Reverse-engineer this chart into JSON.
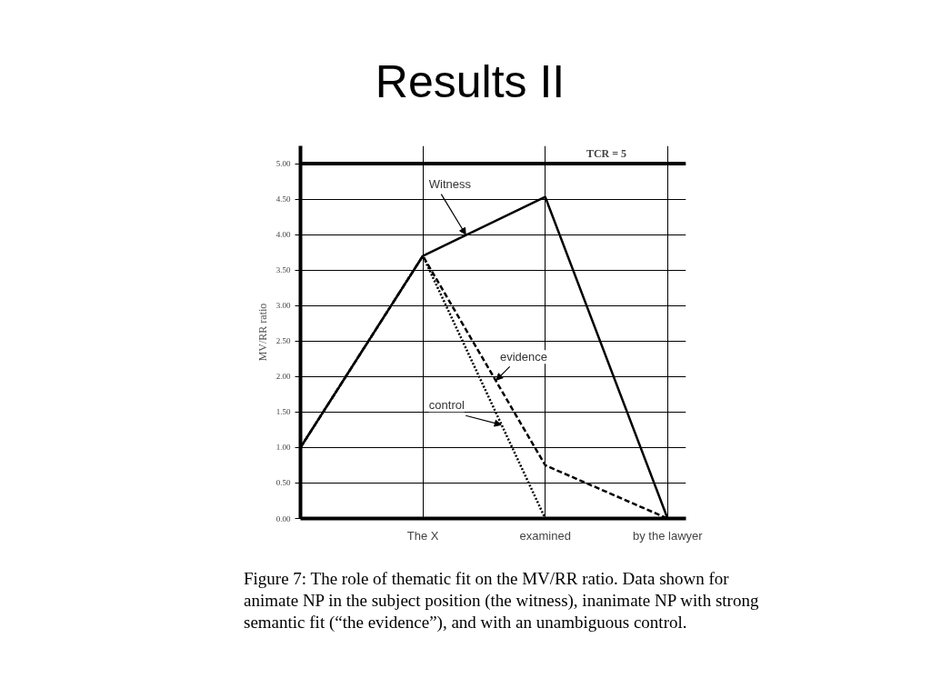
{
  "chart_data": {
    "type": "line",
    "title": "Results II",
    "ylabel": "MV/RR ratio",
    "categories": [
      null,
      "The X",
      "examined",
      "by the lawyer"
    ],
    "series": [
      {
        "name": "Witness",
        "color": "#000000",
        "line_style": "solid",
        "values": [
          1.0,
          3.7,
          4.53,
          0
        ]
      },
      {
        "name": "evidence",
        "color": "#000000",
        "line_style": "dashed",
        "values": [
          1.0,
          3.7,
          0.75,
          0
        ]
      },
      {
        "name": "control",
        "color": "#000000",
        "line_style": "dotted",
        "values": [
          1.0,
          3.7,
          0,
          null
        ]
      }
    ],
    "ylim": [
      0,
      5.25
    ],
    "yticks": [
      {
        "value": 0,
        "label": "0.00"
      },
      {
        "value": 0.5,
        "label": "0.50"
      },
      {
        "value": 1,
        "label": "1.00"
      },
      {
        "value": 1.5,
        "label": "1.50"
      },
      {
        "value": 2,
        "label": "2.00"
      },
      {
        "value": 2.5,
        "label": "2.50"
      },
      {
        "value": 3,
        "label": "3.00"
      },
      {
        "value": 3.5,
        "label": "3.50"
      },
      {
        "value": 4,
        "label": "4.00"
      },
      {
        "value": 4.5,
        "label": "4.50"
      },
      {
        "value": 5,
        "label": "5.00"
      }
    ],
    "ref_lines": [
      {
        "axis": "y",
        "value": 5,
        "label": "TCR = 5"
      }
    ],
    "grid": true,
    "marker": "none",
    "annotations": [
      "Figure 7: The role of thematic fit on the MV/RR ratio. Data shown for animate NP in the subject position (the witness), inanimate NP with strong semantic fit (“the evidence”), and with an unambiguous control."
    ]
  }
}
